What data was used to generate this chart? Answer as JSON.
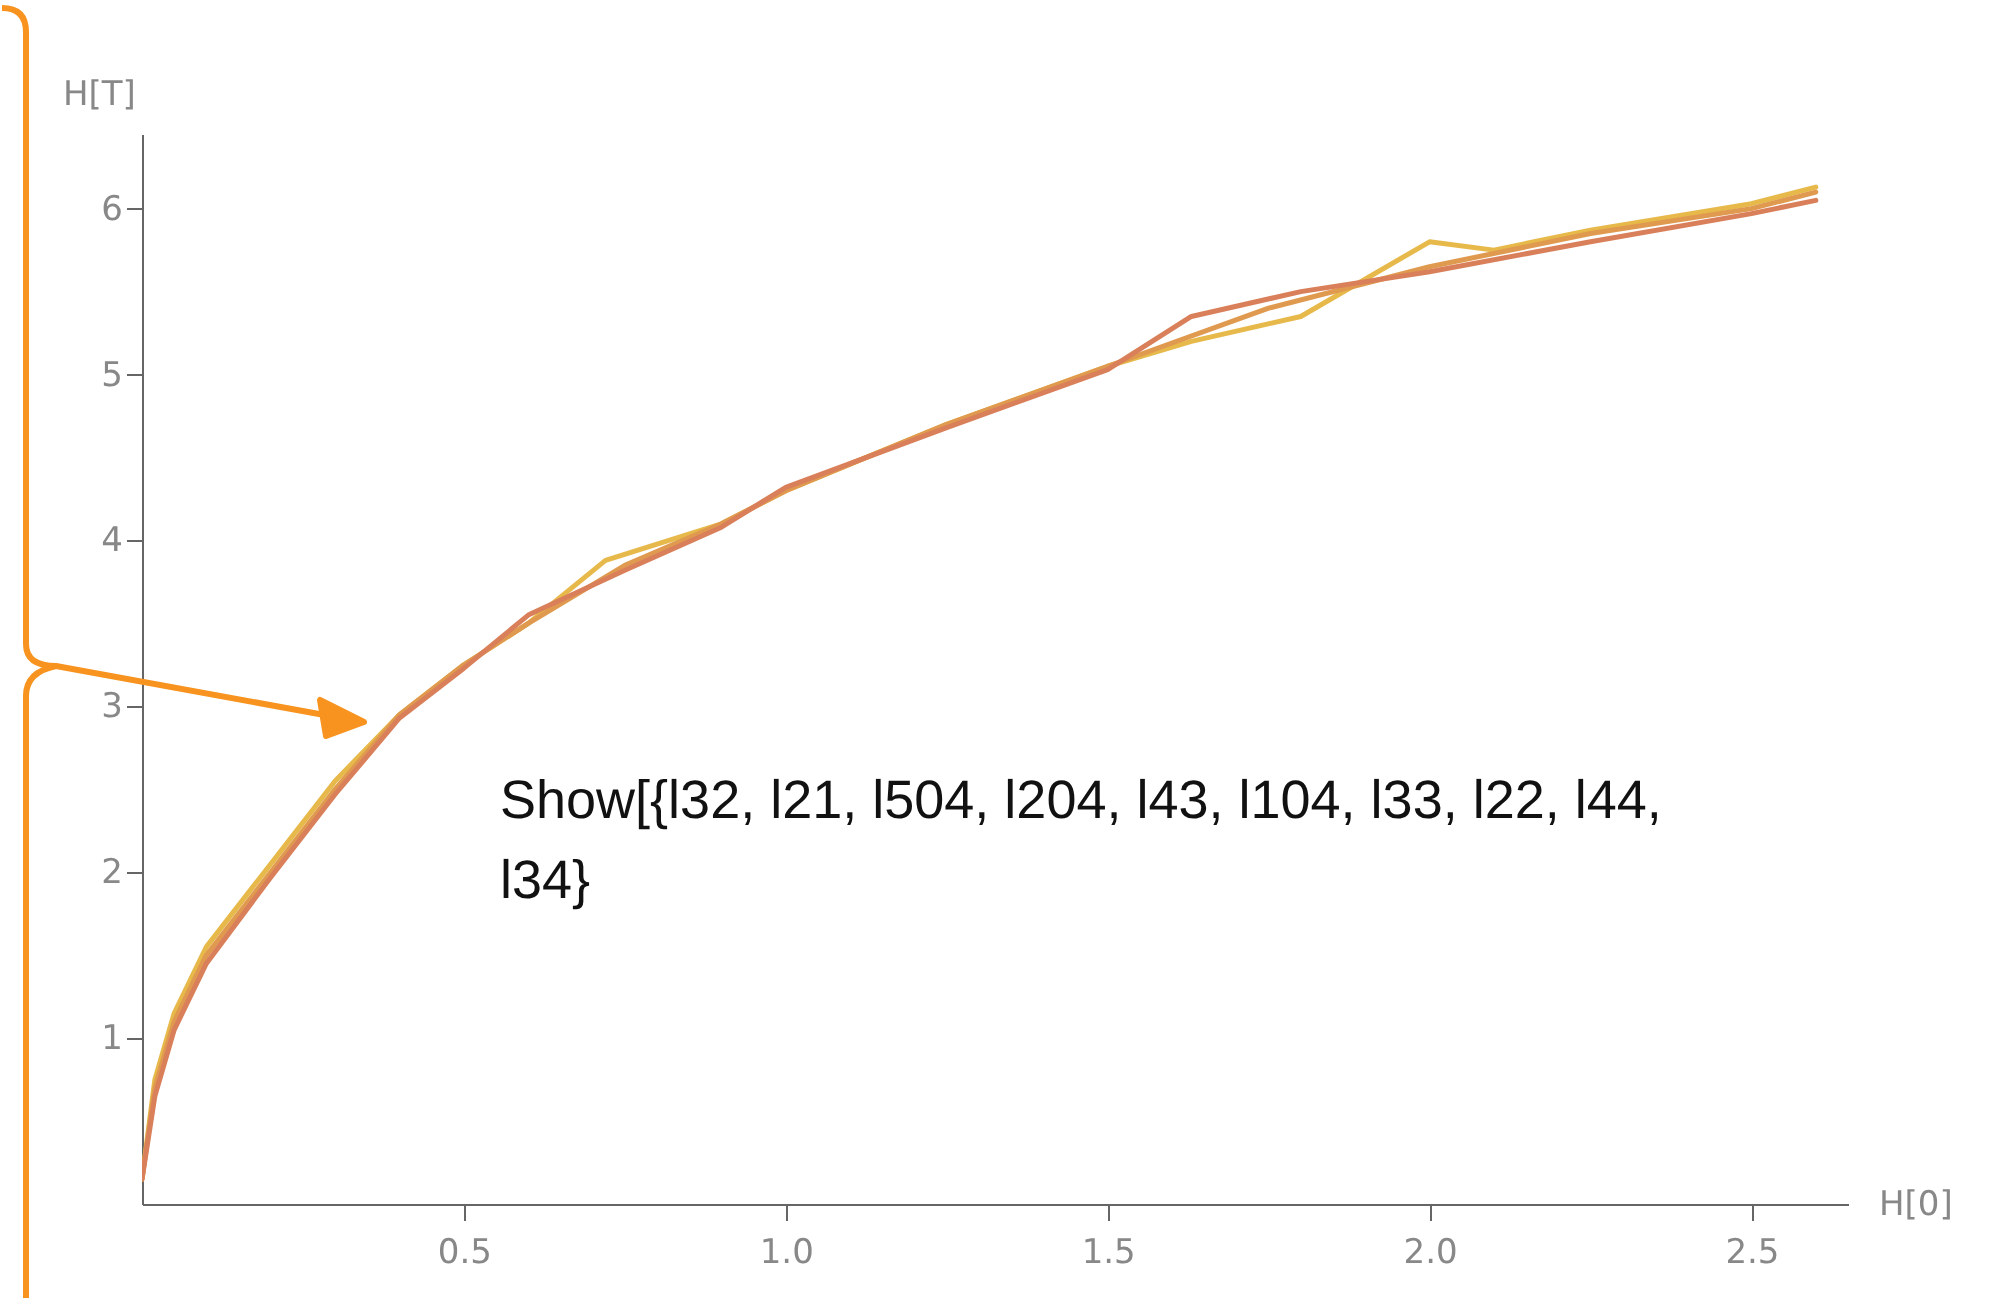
{
  "chart_data": {
    "type": "line",
    "xlabel": "H[0]",
    "ylabel": "H[T]",
    "annotations": [
      "Show[{l32, l21, l504, l204, l43, l104, l33, l22, l44, l34}"
    ],
    "xlim": [
      0,
      2.65
    ],
    "ylim": [
      0,
      6.45
    ],
    "xticks": [
      0.5,
      {
        "value": 1,
        "label": "1.0"
      },
      1.5,
      {
        "value": 2,
        "label": "2.0"
      },
      2.5
    ],
    "yticks": [
      1,
      2,
      3,
      4,
      5,
      6
    ],
    "grid": false,
    "marker": "none",
    "line_style": "solid",
    "series": [
      {
        "color": "#e6b94a",
        "x": [
          0,
          0.02,
          0.05,
          0.1,
          0.2,
          0.3,
          0.4,
          0.5,
          0.6,
          0.72,
          0.9,
          1.0,
          1.25,
          1.5,
          1.63,
          1.8,
          2.0,
          2.1,
          2.25,
          2.5,
          2.6
        ],
        "values": [
          0.15,
          0.75,
          1.15,
          1.55,
          2.05,
          2.55,
          2.95,
          3.25,
          3.5,
          3.88,
          4.1,
          4.3,
          4.7,
          5.05,
          5.2,
          5.35,
          5.8,
          5.75,
          5.87,
          6.03,
          6.13
        ]
      },
      {
        "color": "#e09a50",
        "x": [
          0,
          0.02,
          0.05,
          0.1,
          0.2,
          0.3,
          0.4,
          0.5,
          0.6,
          0.75,
          0.9,
          1.0,
          1.25,
          1.5,
          1.75,
          2.0,
          2.25,
          2.5,
          2.6
        ],
        "values": [
          0.15,
          0.7,
          1.1,
          1.5,
          2.0,
          2.5,
          2.95,
          3.25,
          3.5,
          3.85,
          4.1,
          4.3,
          4.7,
          5.05,
          5.4,
          5.65,
          5.85,
          6.0,
          6.1
        ]
      },
      {
        "color": "#d9805a",
        "x": [
          0,
          0.02,
          0.05,
          0.1,
          0.2,
          0.3,
          0.4,
          0.5,
          0.6,
          0.75,
          0.9,
          1.0,
          1.25,
          1.5,
          1.63,
          1.8,
          2.0,
          2.25,
          2.5,
          2.6
        ],
        "values": [
          0.15,
          0.65,
          1.05,
          1.45,
          1.97,
          2.47,
          2.93,
          3.23,
          3.55,
          3.82,
          4.08,
          4.32,
          4.68,
          5.03,
          5.35,
          5.5,
          5.62,
          5.8,
          5.97,
          6.05
        ]
      }
    ]
  }
}
